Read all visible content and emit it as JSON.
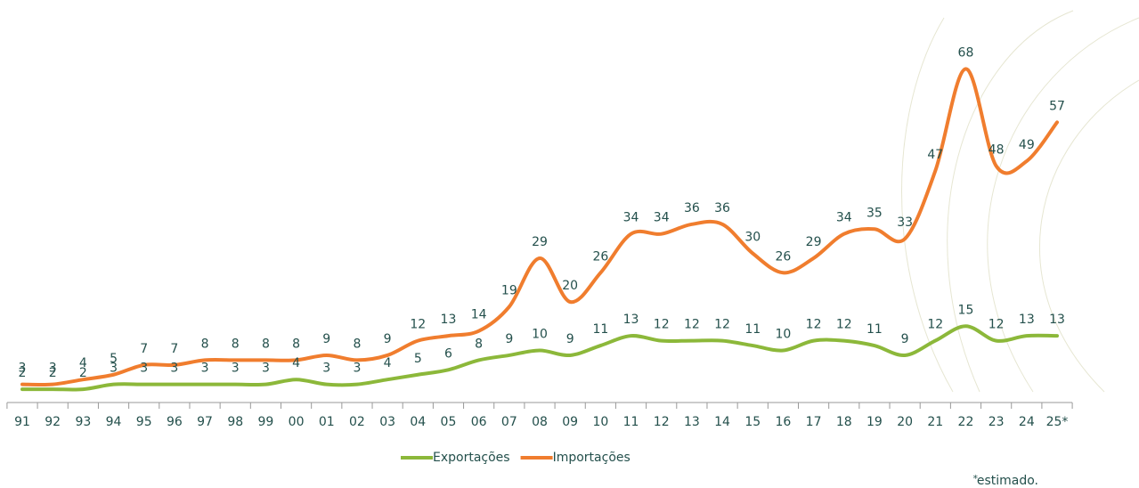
{
  "chart_data": {
    "type": "line",
    "categories": [
      "91",
      "92",
      "93",
      "94",
      "95",
      "96",
      "97",
      "98",
      "99",
      "00",
      "01",
      "02",
      "03",
      "04",
      "05",
      "06",
      "07",
      "08",
      "09",
      "10",
      "11",
      "12",
      "13",
      "14",
      "15",
      "16",
      "17",
      "18",
      "19",
      "20",
      "21",
      "22",
      "23",
      "24",
      "25*"
    ],
    "series": [
      {
        "name": "Exportações",
        "color": "#8cb83a",
        "values": [
          2,
          2,
          2,
          3,
          3,
          3,
          3,
          3,
          3,
          4,
          3,
          3,
          4,
          5,
          6,
          8,
          9,
          10,
          9,
          11,
          13,
          12,
          12,
          12,
          11,
          10,
          12,
          12,
          11,
          9,
          12,
          15,
          12,
          13,
          13
        ]
      },
      {
        "name": "Importações",
        "color": "#f07d2e",
        "values": [
          3,
          3,
          4,
          5,
          7,
          7,
          8,
          8,
          8,
          8,
          9,
          8,
          9,
          12,
          13,
          14,
          19,
          29,
          20,
          26,
          34,
          34,
          36,
          36,
          30,
          26,
          29,
          34,
          35,
          33,
          47,
          68,
          48,
          49,
          57
        ]
      }
    ],
    "note_marker": "*",
    "note": "estimado."
  }
}
